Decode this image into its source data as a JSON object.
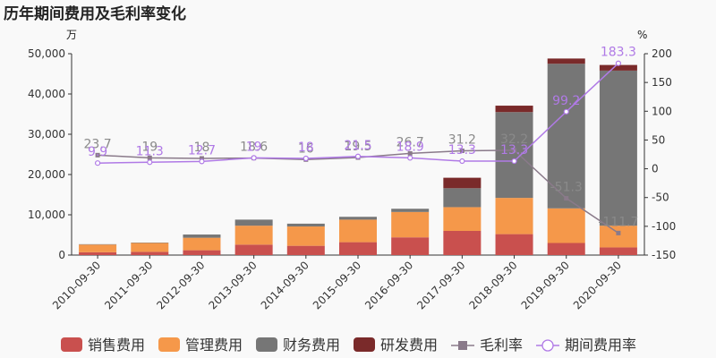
{
  "chart_data": {
    "type": "bar",
    "title": "历年期间费用及毛利率变化",
    "left_unit": "万",
    "right_unit": "%",
    "categories": [
      "2010-09-30",
      "2011-09-30",
      "2012-09-30",
      "2013-09-30",
      "2014-09-30",
      "2015-09-30",
      "2016-09-30",
      "2017-09-30",
      "2018-09-30",
      "2019-09-30",
      "2020-09-30"
    ],
    "left_ylim": [
      0,
      50000
    ],
    "left_ticks": [
      "0",
      "10,000",
      "20,000",
      "30,000",
      "40,000",
      "50,000"
    ],
    "right_ylim": [
      -150,
      200
    ],
    "right_ticks": [
      "-150",
      "-100",
      "-50",
      "0",
      "50",
      "100",
      "150",
      "200"
    ],
    "series": [
      {
        "name": "销售费用",
        "type": "bar",
        "color": "#c9504e",
        "values": [
          700,
          800,
          1200,
          2600,
          2300,
          3200,
          4400,
          6000,
          5200,
          3000,
          1900
        ]
      },
      {
        "name": "管理费用",
        "type": "bar",
        "color": "#f5984a",
        "values": [
          1900,
          2200,
          3100,
          4700,
          4800,
          5600,
          6300,
          5900,
          9000,
          8600,
          5400
        ]
      },
      {
        "name": "财务费用",
        "type": "bar",
        "color": "#767676",
        "values": [
          100,
          100,
          800,
          1500,
          700,
          700,
          800,
          4700,
          21300,
          35900,
          38500
        ]
      },
      {
        "name": "研发费用",
        "type": "bar",
        "color": "#7a2a2a",
        "values": [
          0,
          0,
          0,
          0,
          0,
          0,
          0,
          2600,
          1600,
          1300,
          1400
        ]
      },
      {
        "name": "毛利率",
        "type": "line",
        "color": "#8a7a8a",
        "values": [
          23.7,
          19,
          18,
          18.6,
          16,
          19.5,
          26.7,
          31.2,
          32.2,
          -51.3,
          -111.7
        ],
        "labels": [
          "23.7",
          "19",
          "18",
          "18.6",
          "16",
          "19.5",
          "26.7",
          "31.2",
          "32.2",
          "-51.3",
          "-111.7"
        ]
      },
      {
        "name": "期间费用率",
        "type": "line",
        "color": "#b07ae6",
        "values": [
          9.9,
          11.3,
          12.7,
          19,
          18,
          21.5,
          18.9,
          13.3,
          13.3,
          99.2,
          183.3
        ],
        "labels": [
          "9.9",
          "11.3",
          "12.7",
          "19",
          "18",
          "21.5",
          "18.9",
          "13.3",
          "13.3",
          "99.2",
          "183.3"
        ]
      }
    ],
    "legend_position": "bottom",
    "grid": false
  }
}
